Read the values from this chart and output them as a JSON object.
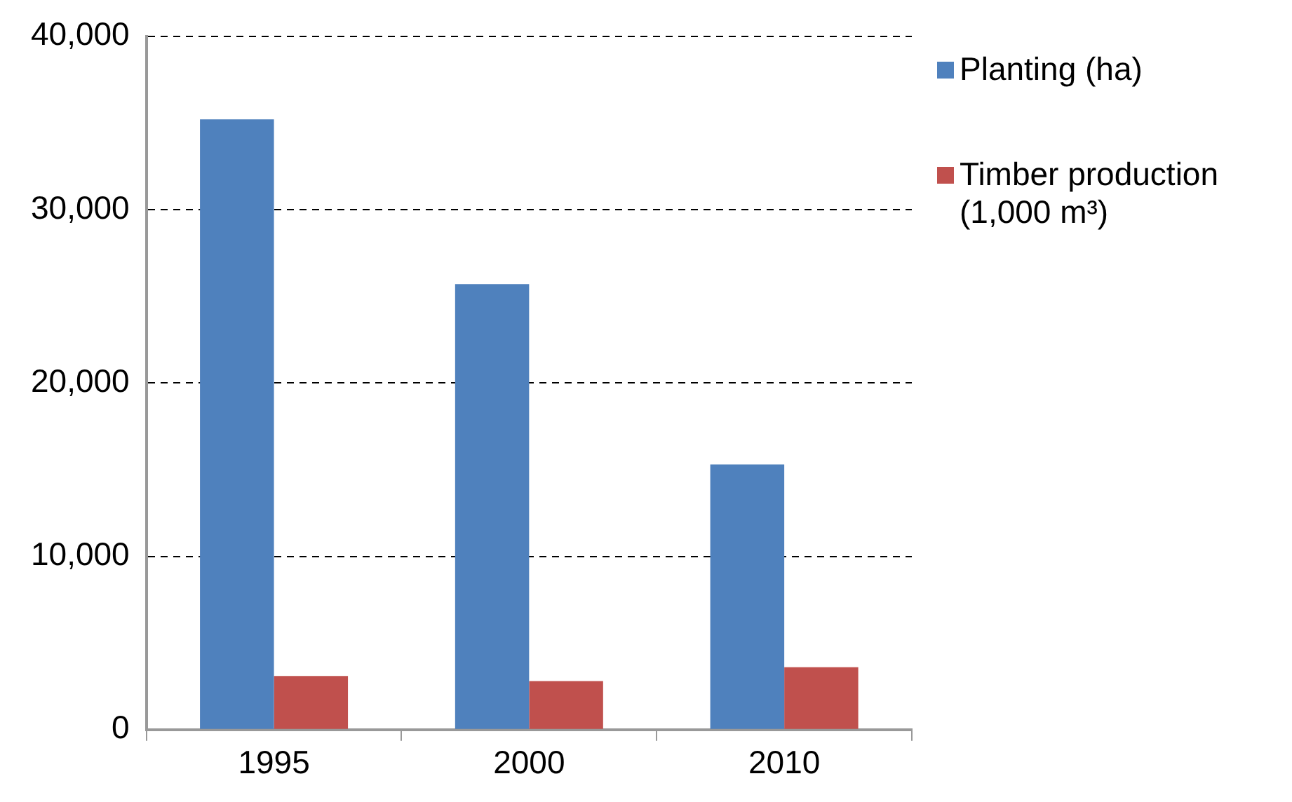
{
  "chart_data": {
    "type": "bar",
    "categories": [
      "1995",
      "2000",
      "2010"
    ],
    "series": [
      {
        "name": "Planting (ha)",
        "color": "#4f81bd",
        "values": [
          35200,
          25700,
          15300
        ]
      },
      {
        "name": "Timber production (1,000 m³)",
        "color": "#c0504d",
        "values": [
          3100,
          2800,
          3600
        ]
      }
    ],
    "ylim": [
      0,
      40000
    ],
    "yticks": [
      0,
      {
        "value": 10000,
        "label": "10,000"
      },
      {
        "value": 20000,
        "label": "20,000"
      },
      {
        "value": 30000,
        "label": "30,000"
      },
      {
        "value": 40000,
        "label": "40,000"
      }
    ],
    "grid": "y",
    "legend": "right"
  }
}
